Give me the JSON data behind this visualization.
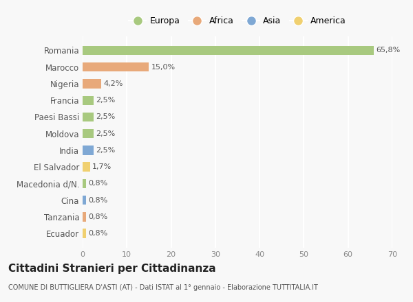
{
  "categories": [
    "Romania",
    "Marocco",
    "Nigeria",
    "Francia",
    "Paesi Bassi",
    "Moldova",
    "India",
    "El Salvador",
    "Macedonia d/N.",
    "Cina",
    "Tanzania",
    "Ecuador"
  ],
  "values": [
    65.8,
    15.0,
    4.2,
    2.5,
    2.5,
    2.5,
    2.5,
    1.7,
    0.8,
    0.8,
    0.8,
    0.8
  ],
  "labels": [
    "65,8%",
    "15,0%",
    "4,2%",
    "2,5%",
    "2,5%",
    "2,5%",
    "2,5%",
    "1,7%",
    "0,8%",
    "0,8%",
    "0,8%",
    "0,8%"
  ],
  "colors": [
    "#a8c97f",
    "#e8a97a",
    "#e8a97a",
    "#a8c97f",
    "#a8c97f",
    "#a8c97f",
    "#7fa8d4",
    "#f0d070",
    "#a8c97f",
    "#7fa8d4",
    "#e8a97a",
    "#f0d070"
  ],
  "legend": [
    {
      "label": "Europa",
      "color": "#a8c97f"
    },
    {
      "label": "Africa",
      "color": "#e8a97a"
    },
    {
      "label": "Asia",
      "color": "#7fa8d4"
    },
    {
      "label": "America",
      "color": "#f0d070"
    }
  ],
  "xlim": [
    0,
    70
  ],
  "xticks": [
    0,
    10,
    20,
    30,
    40,
    50,
    60,
    70
  ],
  "title": "Cittadini Stranieri per Cittadinanza",
  "subtitle": "COMUNE DI BUTTIGLIERA D'ASTI (AT) - Dati ISTAT al 1° gennaio - Elaborazione TUTTITALIA.IT",
  "background_color": "#f8f8f8",
  "grid_color": "#ffffff",
  "bar_height": 0.55
}
